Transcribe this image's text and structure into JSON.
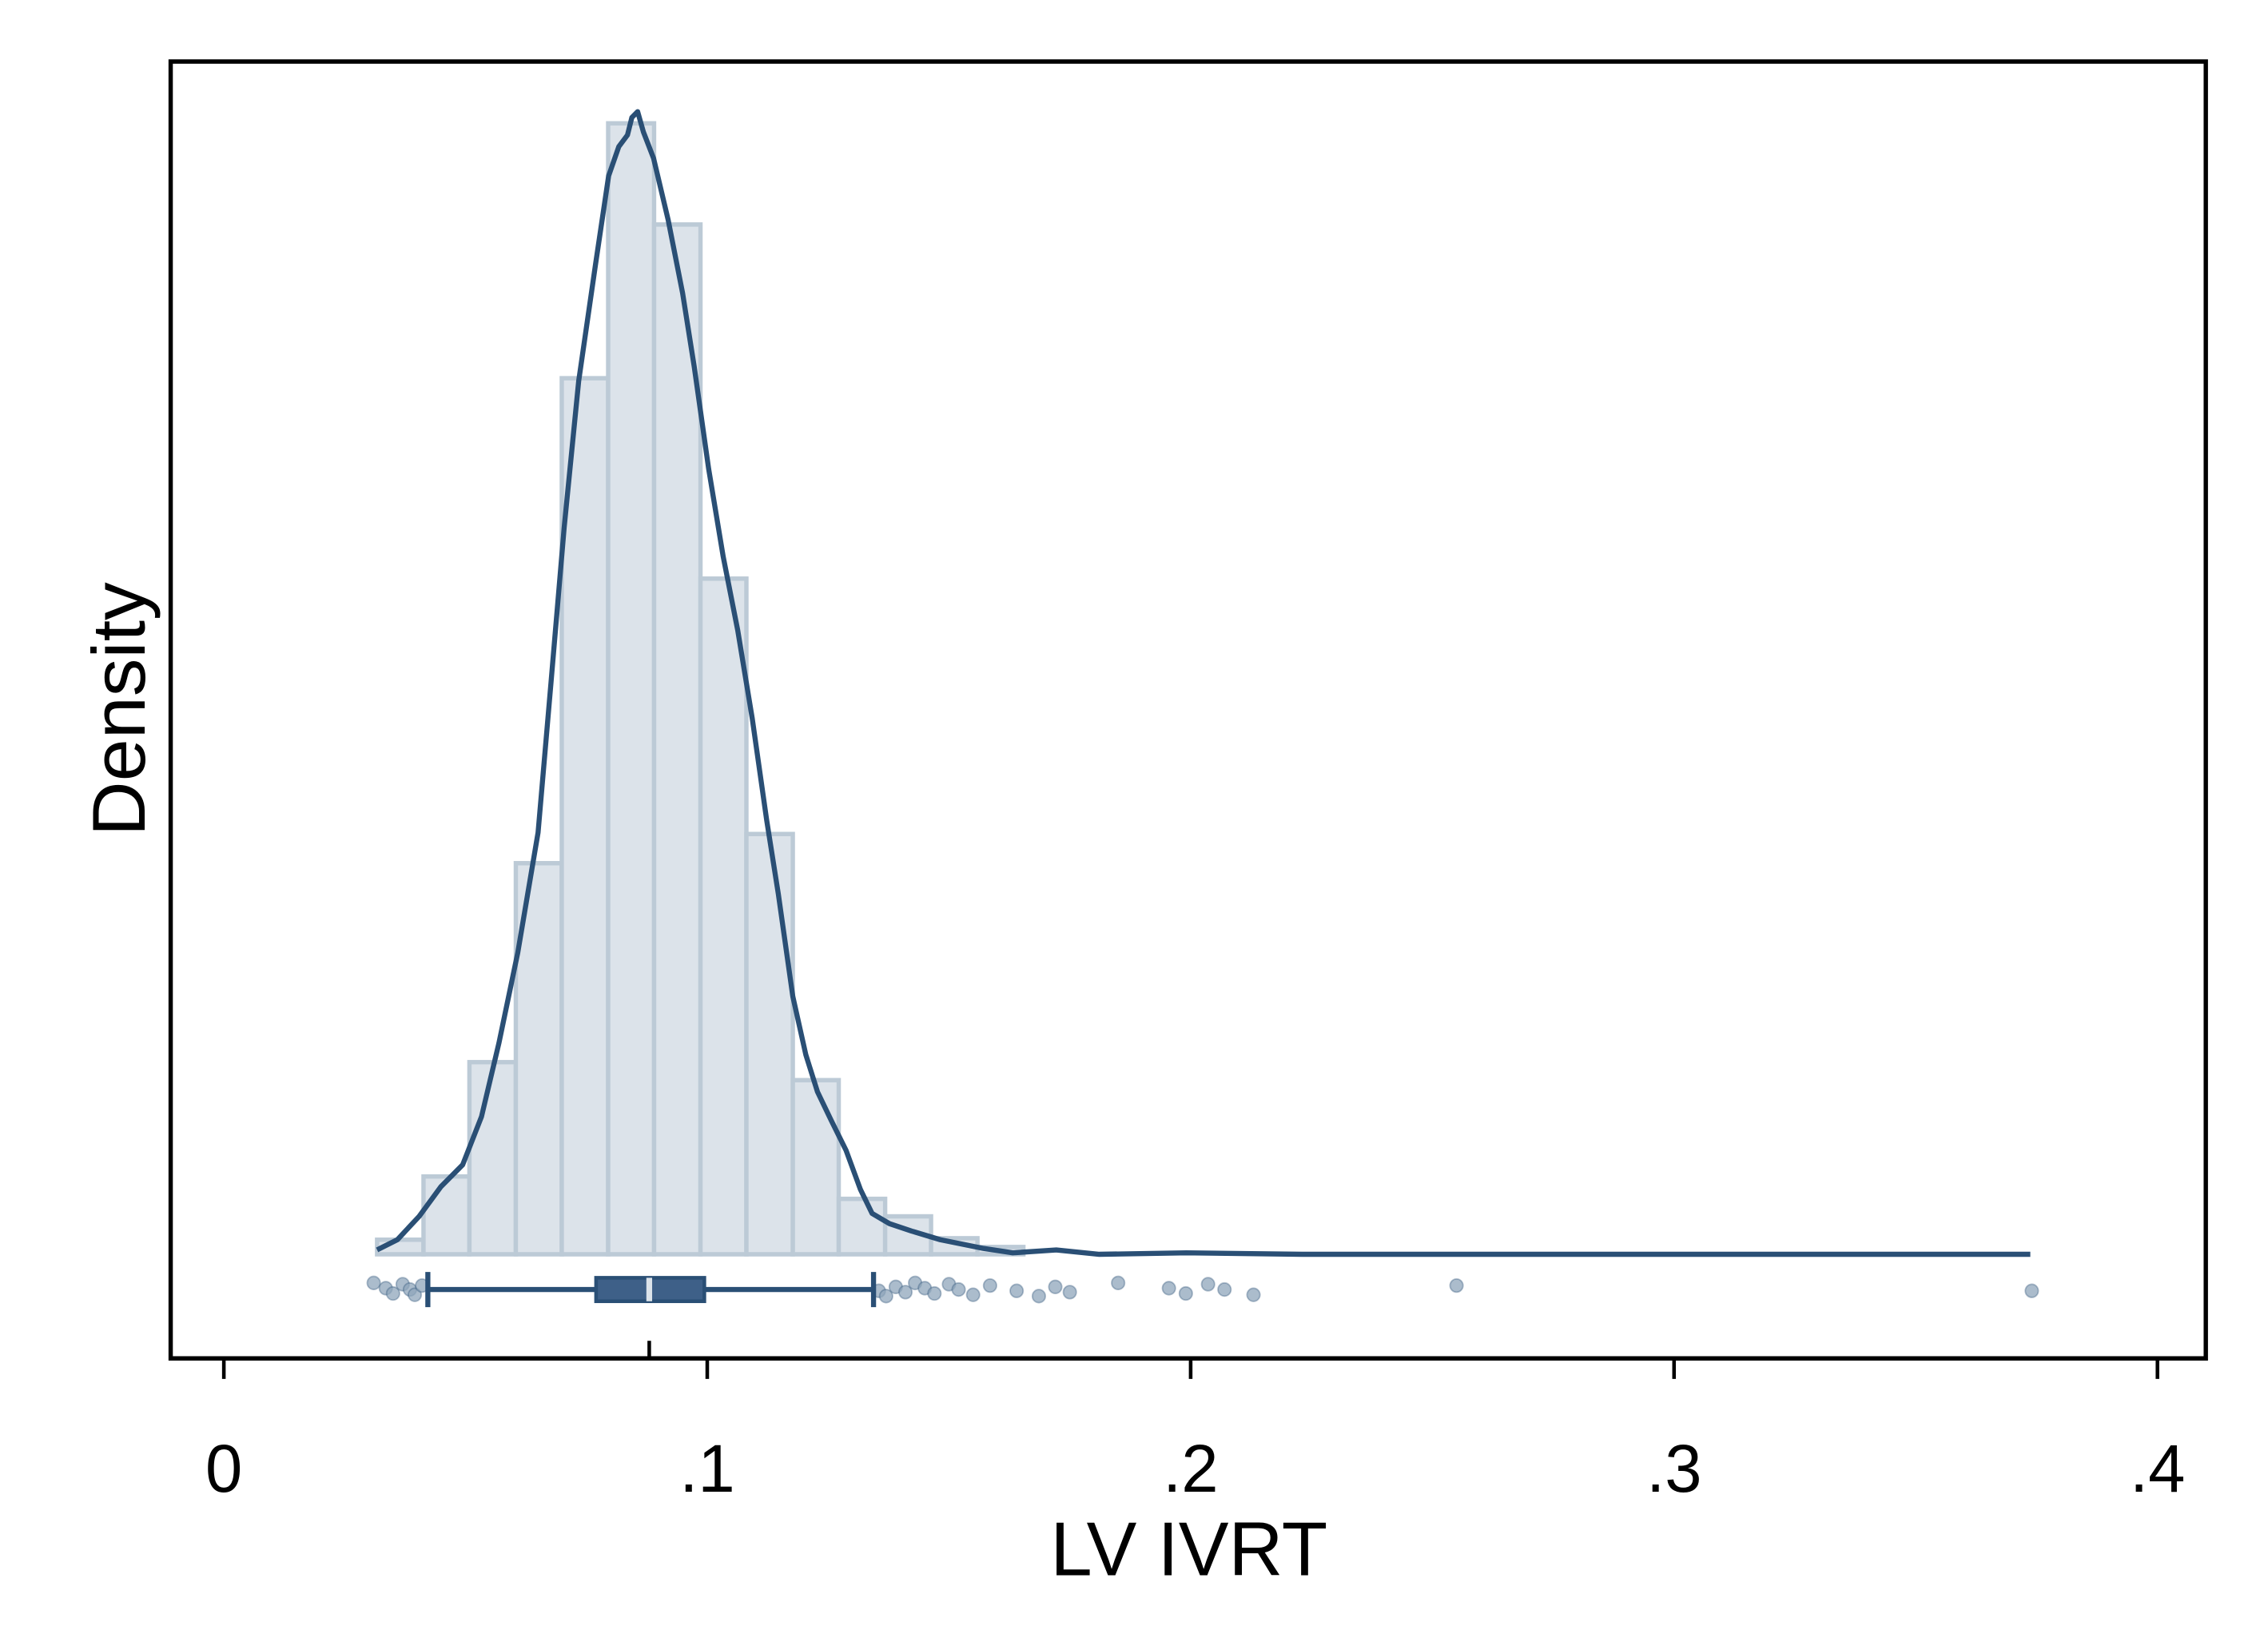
{
  "chart_data": {
    "type": "histogram",
    "x_label": "LV IVRT",
    "y_label": "Density",
    "bins": [
      0.0317,
      0.0413,
      0.0508,
      0.0604,
      0.0699,
      0.0795,
      0.089,
      0.0986,
      0.1081,
      0.1177,
      0.1272,
      0.1368,
      0.1463,
      0.1559,
      0.1654
    ],
    "values": [
      0.3,
      1.6,
      3.95,
      8.04,
      18.01,
      23.25,
      21.17,
      13.89,
      8.64,
      3.58,
      1.14,
      0.78,
      0.33,
      0.15
    ],
    "color": "#dce3ea",
    "edge_color": "#bccad6",
    "density_x": [
      0.0317,
      0.0359,
      0.0404,
      0.0449,
      0.0494,
      0.0533,
      0.0569,
      0.0608,
      0.065,
      0.0677,
      0.0704,
      0.0734,
      0.0769,
      0.0796,
      0.0817,
      0.0835,
      0.0844,
      0.0856,
      0.0868,
      0.0889,
      0.0919,
      0.0949,
      0.0973,
      0.1003,
      0.1033,
      0.1063,
      0.1093,
      0.1123,
      0.1147,
      0.1177,
      0.1204,
      0.1228,
      0.1257,
      0.1287,
      0.1317,
      0.1341,
      0.1377,
      0.1422,
      0.1482,
      0.1572,
      0.1632,
      0.1722,
      0.1811,
      0.1991,
      0.2231,
      0.253,
      0.3737
    ],
    "density_y": [
      0.09,
      0.3,
      0.78,
      1.39,
      1.84,
      2.83,
      4.34,
      6.2,
      8.67,
      11.78,
      14.94,
      17.95,
      20.36,
      22.17,
      22.77,
      23.01,
      23.37,
      23.49,
      23.07,
      22.53,
      21.27,
      19.76,
      18.25,
      16.14,
      14.34,
      12.83,
      11.02,
      8.92,
      7.41,
      5.3,
      4.1,
      3.34,
      2.74,
      2.14,
      1.33,
      0.84,
      0.63,
      0.48,
      0.3,
      0.12,
      0.03,
      0.09,
      0,
      0.03,
      0,
      0,
      0
    ],
    "density_color": "#2a4f75",
    "box": {
      "whisker_low": 0.0422,
      "q1": 0.077,
      "median": 0.088,
      "q3": 0.0994,
      "whisker_high": 0.1344
    },
    "box_color": "#3e6088",
    "outliers": [
      0.031,
      0.0335,
      0.035,
      0.037,
      0.0385,
      0.0395,
      0.041,
      0.1355,
      0.137,
      0.139,
      0.141,
      0.143,
      0.145,
      0.147,
      0.15,
      0.152,
      0.155,
      0.1585,
      0.164,
      0.1686,
      0.172,
      0.175,
      0.185,
      0.1955,
      0.199,
      0.2036,
      0.207,
      0.213,
      0.255,
      0.374
    ],
    "outlier_color": "#8fa5bb",
    "xlim": [
      -0.011,
      0.41
    ],
    "ylim": [
      -2.14,
      24.52
    ],
    "xticks": [
      0,
      {
        "value": 0.1,
        "label": ".1"
      },
      {
        "value": 0.2,
        "label": ".2"
      },
      {
        "value": 0.3,
        "label": ".3"
      },
      {
        "value": 0.4,
        "label": ".4"
      }
    ]
  }
}
